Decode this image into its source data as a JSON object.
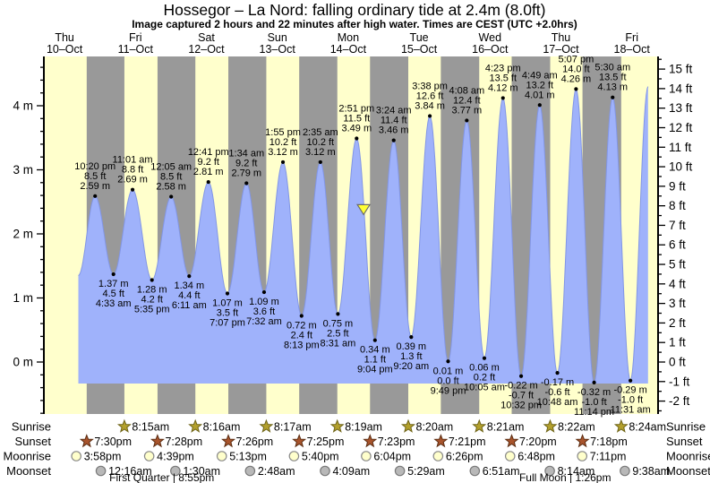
{
  "colors": {
    "day_band": "#ffffcc",
    "night_band": "#999999",
    "tide_fill": "#9fb2fb",
    "tide_stroke": "#8296e6",
    "axis": "#000000",
    "date_red": "#e8302a",
    "marker_fill": "#ffff33",
    "marker_stroke": "#6b6b6b",
    "sunrise_star_fill": "#b3a02c",
    "sunrise_star_stroke": "#6e6418",
    "sunset_star_fill": "#a8542c",
    "sunset_star_stroke": "#5c2d12",
    "moonrise_fill": "#ffffcc",
    "moonrise_stroke": "#8a8a8a",
    "moonset_fill": "#b8b8b8",
    "moonset_stroke": "#7a7a7a"
  },
  "chart_data": {
    "type": "area",
    "title": "Hossegor – La Nord: falling ordinary tide at 2.4m (8.0ft)",
    "subtitle": "Image captured 2 hours and 22 minutes after high water. Times are CEST (UTC +2.0hrs)",
    "y_axis_left": {
      "unit": "m",
      "major_min": 0,
      "major_max": 4,
      "minor_step": 0.2
    },
    "y_axis_right": {
      "unit": "ft",
      "major_min": -2,
      "major_max": 15,
      "minor_step": 0.5
    },
    "days": [
      {
        "name": "Thu",
        "date": "10–Oct"
      },
      {
        "name": "Fri",
        "date": "11–Oct"
      },
      {
        "name": "Sat",
        "date": "12–Oct"
      },
      {
        "name": "Sun",
        "date": "13–Oct"
      },
      {
        "name": "Mon",
        "date": "14–Oct"
      },
      {
        "name": "Tue",
        "date": "15–Oct"
      },
      {
        "name": "Wed",
        "date": "16–Oct"
      },
      {
        "name": "Thu",
        "date": "17–Oct"
      },
      {
        "name": "Fri",
        "date": "18–Oct"
      }
    ],
    "day_night": [
      {
        "rise": null,
        "set": "19:30"
      },
      {
        "rise": "08:15",
        "set": "19:28"
      },
      {
        "rise": "08:16",
        "set": "19:26"
      },
      {
        "rise": "08:17",
        "set": "19:25"
      },
      {
        "rise": "08:19",
        "set": "19:23"
      },
      {
        "rise": "08:20",
        "set": "19:21"
      },
      {
        "rise": "08:21",
        "set": "19:20"
      },
      {
        "rise": "08:22",
        "set": "19:18"
      },
      {
        "rise": "08:24",
        "set": null
      }
    ],
    "tide_events": [
      {
        "d": 0,
        "t": "16:40",
        "m": 1.35,
        "kind": "low",
        "label": null
      },
      {
        "d": 0,
        "t": "22:20",
        "m": 2.59,
        "kind": "high",
        "label": [
          "10:20 pm",
          "8.5 ft",
          "2.59 m"
        ]
      },
      {
        "d": 1,
        "t": "04:33",
        "m": 1.37,
        "kind": "low",
        "label": [
          "1.37 m",
          "4.5 ft",
          "4:33 am"
        ]
      },
      {
        "d": 1,
        "t": "11:01",
        "m": 2.69,
        "kind": "high",
        "label": [
          "11:01 am",
          "8.8 ft",
          "2.69 m"
        ]
      },
      {
        "d": 1,
        "t": "17:35",
        "m": 1.28,
        "kind": "low",
        "label": [
          "1.28 m",
          "4.2 ft",
          "5:35 pm"
        ]
      },
      {
        "d": 2,
        "t": "00:05",
        "m": 2.58,
        "kind": "high",
        "label": [
          "12:05 am",
          "8.5 ft",
          "2.58 m"
        ]
      },
      {
        "d": 2,
        "t": "06:11",
        "m": 1.34,
        "kind": "low",
        "label": [
          "1.34 m",
          "4.4 ft",
          "6:11 am"
        ]
      },
      {
        "d": 2,
        "t": "12:41",
        "m": 2.81,
        "kind": "high",
        "label": [
          "12:41 pm",
          "9.2 ft",
          "2.81 m"
        ]
      },
      {
        "d": 2,
        "t": "19:07",
        "m": 1.07,
        "kind": "low",
        "label": [
          "1.07 m",
          "3.5 ft",
          "7:07 pm"
        ]
      },
      {
        "d": 3,
        "t": "01:34",
        "m": 2.79,
        "kind": "high",
        "label": [
          "1:34 am",
          "9.2 ft",
          "2.79 m"
        ]
      },
      {
        "d": 3,
        "t": "07:32",
        "m": 1.09,
        "kind": "low",
        "label": [
          "1.09 m",
          "3.6 ft",
          "7:32 am"
        ]
      },
      {
        "d": 3,
        "t": "13:55",
        "m": 3.12,
        "kind": "high",
        "label": [
          "1:55 pm",
          "10.2 ft",
          "3.12 m"
        ]
      },
      {
        "d": 3,
        "t": "20:13",
        "m": 0.72,
        "kind": "low",
        "label": [
          "0.72 m",
          "2.4 ft",
          "8:13 pm"
        ]
      },
      {
        "d": 4,
        "t": "02:35",
        "m": 3.12,
        "kind": "high",
        "label": [
          "2:35 am",
          "10.2 ft",
          "3.12 m"
        ]
      },
      {
        "d": 4,
        "t": "08:31",
        "m": 0.75,
        "kind": "low",
        "label": [
          "0.75 m",
          "2.5 ft",
          "8:31 am"
        ]
      },
      {
        "d": 4,
        "t": "14:51",
        "m": 3.49,
        "kind": "high",
        "label": [
          "2:51 pm",
          "11.5 ft",
          "3.49 m"
        ]
      },
      {
        "d": 4,
        "t": "21:04",
        "m": 0.34,
        "kind": "low",
        "label": [
          "0.34 m",
          "1.1 ft",
          "9:04 pm"
        ]
      },
      {
        "d": 5,
        "t": "03:24",
        "m": 3.46,
        "kind": "high",
        "label": [
          "3:24 am",
          "11.4 ft",
          "3.46 m"
        ]
      },
      {
        "d": 5,
        "t": "09:20",
        "m": 0.39,
        "kind": "low",
        "label": [
          "0.39 m",
          "1.3 ft",
          "9:20 am"
        ]
      },
      {
        "d": 5,
        "t": "15:38",
        "m": 3.84,
        "kind": "high",
        "label": [
          "3:38 pm",
          "12.6 ft",
          "3.84 m"
        ]
      },
      {
        "d": 5,
        "t": "21:49",
        "m": 0.01,
        "kind": "low",
        "label": [
          "0.01 m",
          "0.0 ft",
          "9:49 pm"
        ]
      },
      {
        "d": 6,
        "t": "04:08",
        "m": 3.77,
        "kind": "high",
        "label": [
          "4:08 am",
          "12.4 ft",
          "3.77 m"
        ]
      },
      {
        "d": 6,
        "t": "10:05",
        "m": 0.06,
        "kind": "low",
        "label": [
          "0.06 m",
          "0.2 ft",
          "10:05 am"
        ]
      },
      {
        "d": 6,
        "t": "16:23",
        "m": 4.12,
        "kind": "high",
        "label": [
          "4:23 pm",
          "13.5 ft",
          "4.12 m"
        ]
      },
      {
        "d": 6,
        "t": "22:32",
        "m": -0.22,
        "kind": "low",
        "label": [
          "-0.22 m",
          "-0.7 ft",
          "10:32 pm"
        ]
      },
      {
        "d": 7,
        "t": "04:49",
        "m": 4.01,
        "kind": "high",
        "label": [
          "4:49 am",
          "13.2 ft",
          "4.01 m"
        ]
      },
      {
        "d": 7,
        "t": "10:48",
        "m": -0.17,
        "kind": "low",
        "label": [
          "-0.17 m",
          "-0.6 ft",
          "10:48 am"
        ]
      },
      {
        "d": 7,
        "t": "17:07",
        "m": 4.26,
        "kind": "high",
        "label": [
          "5:07 pm",
          "14.0 ft",
          "4.26 m"
        ]
      },
      {
        "d": 7,
        "t": "23:14",
        "m": -0.32,
        "kind": "low",
        "label": [
          "-0.32 m",
          "-1.0 ft",
          "11:14 pm"
        ]
      },
      {
        "d": 8,
        "t": "05:30",
        "m": 4.13,
        "kind": "high",
        "label": [
          "5:30 am",
          "13.5 ft",
          "4.13 m"
        ]
      },
      {
        "d": 8,
        "t": "11:31",
        "m": -0.29,
        "kind": "low",
        "label": [
          "-0.29 m",
          "-1.0 ft",
          "11:31 am"
        ]
      },
      {
        "d": 8,
        "t": "17:30",
        "m": 4.3,
        "kind": "high",
        "label": null
      }
    ],
    "current_marker": {
      "d": 4,
      "t": "17:13",
      "m": 2.4
    },
    "sun_moon": {
      "rows": [
        {
          "key": "sunrise",
          "label": "Sunrise",
          "icon": "sunrise-star",
          "entries": [
            {
              "d": 1,
              "t": "08:15",
              "label": "8:15am"
            },
            {
              "d": 2,
              "t": "08:16",
              "label": "8:16am"
            },
            {
              "d": 3,
              "t": "08:17",
              "label": "8:17am"
            },
            {
              "d": 4,
              "t": "08:19",
              "label": "8:19am"
            },
            {
              "d": 5,
              "t": "08:20",
              "label": "8:20am"
            },
            {
              "d": 6,
              "t": "08:21",
              "label": "8:21am"
            },
            {
              "d": 7,
              "t": "08:22",
              "label": "8:22am"
            },
            {
              "d": 8,
              "t": "08:24",
              "label": "8:24am"
            }
          ]
        },
        {
          "key": "sunset",
          "label": "Sunset",
          "icon": "sunset-star",
          "entries": [
            {
              "d": 0,
              "t": "19:30",
              "label": "7:30pm"
            },
            {
              "d": 1,
              "t": "19:28",
              "label": "7:28pm"
            },
            {
              "d": 2,
              "t": "19:26",
              "label": "7:26pm"
            },
            {
              "d": 3,
              "t": "19:25",
              "label": "7:25pm"
            },
            {
              "d": 4,
              "t": "19:23",
              "label": "7:23pm"
            },
            {
              "d": 5,
              "t": "19:21",
              "label": "7:21pm"
            },
            {
              "d": 6,
              "t": "19:20",
              "label": "7:20pm"
            },
            {
              "d": 7,
              "t": "19:18",
              "label": "7:18pm"
            }
          ]
        },
        {
          "key": "moonrise",
          "label": "Moonrise",
          "icon": "moonrise-circle",
          "entries": [
            {
              "d": 0,
              "t": "15:58",
              "label": "3:58pm"
            },
            {
              "d": 1,
              "t": "16:39",
              "label": "4:39pm"
            },
            {
              "d": 2,
              "t": "17:13",
              "label": "5:13pm"
            },
            {
              "d": 3,
              "t": "17:40",
              "label": "5:40pm"
            },
            {
              "d": 4,
              "t": "18:04",
              "label": "6:04pm"
            },
            {
              "d": 5,
              "t": "18:26",
              "label": "6:26pm"
            },
            {
              "d": 6,
              "t": "18:48",
              "label": "6:48pm"
            },
            {
              "d": 7,
              "t": "19:11",
              "label": "7:11pm"
            }
          ]
        },
        {
          "key": "moonset",
          "label": "Moonset",
          "icon": "moonset-circle",
          "entries": [
            {
              "d": 1,
              "t": "00:16",
              "label": "12:16am"
            },
            {
              "d": 2,
              "t": "01:30",
              "label": "1:30am"
            },
            {
              "d": 3,
              "t": "02:48",
              "label": "2:48am"
            },
            {
              "d": 4,
              "t": "04:09",
              "label": "4:09am"
            },
            {
              "d": 5,
              "t": "05:29",
              "label": "5:29am"
            },
            {
              "d": 6,
              "t": "06:51",
              "label": "6:51am"
            },
            {
              "d": 7,
              "t": "08:14",
              "label": "8:14am"
            },
            {
              "d": 8,
              "t": "09:38",
              "label": "9:38am"
            }
          ]
        }
      ]
    },
    "moon_phases": [
      {
        "label": "First Quarter",
        "time": "8:55pm",
        "d": 1,
        "t": "20:55"
      },
      {
        "label": "Full Moon",
        "time": "1:26pm",
        "d": 7,
        "t": "13:26"
      }
    ]
  }
}
